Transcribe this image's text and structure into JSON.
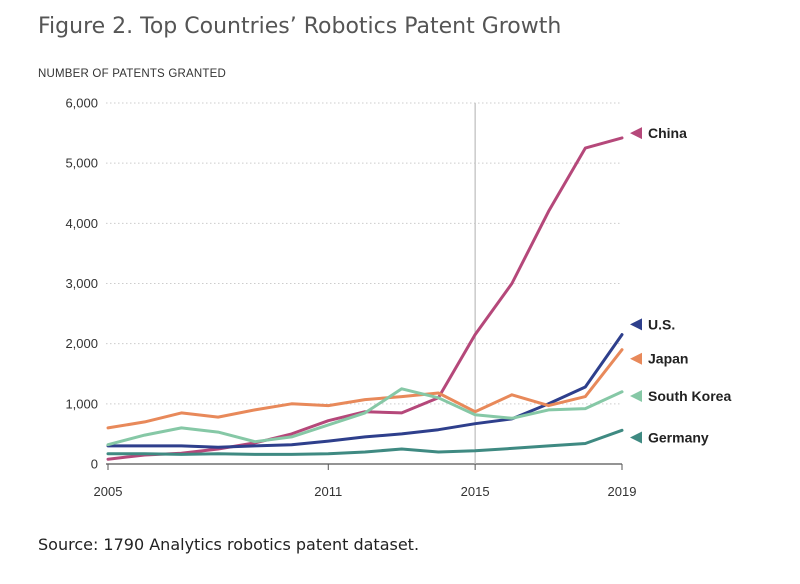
{
  "figure_title": "Figure 2. Top Countries’ Robotics Patent Growth",
  "source_note": "Source: 1790 Analytics robotics patent dataset.",
  "colors": {
    "China": "#b5487a",
    "U.S.": "#2e3f8c",
    "Japan": "#e8895a",
    "South Korea": "#86c8a6",
    "Germany": "#3f8a82",
    "grid": "#cccccc",
    "axis": "#555555"
  },
  "chart_data": {
    "type": "line",
    "title": "Figure 2. Top Countries’ Robotics Patent Growth",
    "ylabel": "NUMBER OF PATENTS GRANTED",
    "xlabel": "",
    "xlim": [
      2005,
      2019
    ],
    "ylim": [
      0,
      6000
    ],
    "y_ticks": [
      0,
      1000,
      2000,
      3000,
      4000,
      5000,
      6000
    ],
    "y_tick_labels": [
      "0",
      "1,000",
      "2,000",
      "3,000",
      "4,000",
      "5,000",
      "6,000"
    ],
    "x_ticks": [
      2005,
      2011,
      2015,
      2019
    ],
    "x_tick_labels": [
      "2005",
      "2011",
      "2015",
      "2019"
    ],
    "reference_line_x": 2015,
    "grid": "horizontal dotted",
    "x": [
      2005,
      2006,
      2007,
      2008,
      2009,
      2010,
      2011,
      2012,
      2013,
      2014,
      2015,
      2016,
      2017,
      2018,
      2019
    ],
    "series": [
      {
        "name": "China",
        "label": "China",
        "values": [
          80,
          150,
          180,
          250,
          350,
          500,
          720,
          870,
          850,
          1100,
          2150,
          3000,
          4200,
          5250,
          5420
        ]
      },
      {
        "name": "U.S.",
        "label": "U.S.",
        "values": [
          300,
          300,
          300,
          280,
          300,
          320,
          380,
          450,
          500,
          570,
          670,
          750,
          1000,
          1280,
          2150
        ]
      },
      {
        "name": "Japan",
        "label": "Japan",
        "values": [
          600,
          700,
          850,
          780,
          900,
          1000,
          970,
          1070,
          1120,
          1180,
          870,
          1150,
          970,
          1120,
          1900
        ]
      },
      {
        "name": "South Korea",
        "label": "South Korea",
        "values": [
          320,
          480,
          600,
          530,
          370,
          450,
          650,
          850,
          1250,
          1100,
          820,
          760,
          900,
          920,
          1200
        ]
      },
      {
        "name": "Germany",
        "label": "Germany",
        "values": [
          170,
          170,
          160,
          170,
          160,
          160,
          170,
          200,
          250,
          200,
          220,
          260,
          300,
          340,
          560
        ]
      }
    ]
  }
}
